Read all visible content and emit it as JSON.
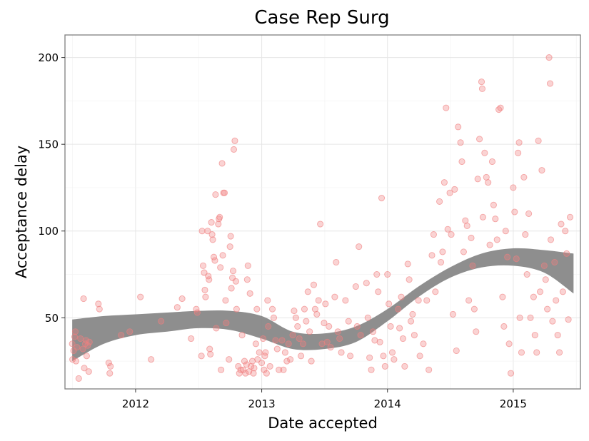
{
  "chart_data": {
    "type": "scatter",
    "title": "Case Rep Surg",
    "xlabel": "Date accepted",
    "ylabel": "Acceptance delay",
    "x_axis_type": "date",
    "xlim": [
      "2011-06-10",
      "2015-07-15"
    ],
    "ylim": [
      9,
      213
    ],
    "x_ticks": [
      "2012-01-01",
      "2013-01-01",
      "2014-01-01",
      "2015-01-01"
    ],
    "x_tick_labels": [
      "2012",
      "2013",
      "2014",
      "2015"
    ],
    "y_ticks": [
      50,
      100,
      150,
      200
    ],
    "grid": true,
    "legend": "none",
    "colors": {
      "points": "#f08080",
      "band": "#888888"
    },
    "series": [
      {
        "kind": "points",
        "points": [
          [
            "2011-07-01",
            35
          ],
          [
            "2011-07-02",
            26
          ],
          [
            "2011-07-05",
            31
          ],
          [
            "2011-07-08",
            39
          ],
          [
            "2011-07-10",
            42
          ],
          [
            "2011-07-12",
            25
          ],
          [
            "2011-07-15",
            33
          ],
          [
            "2011-07-20",
            15
          ],
          [
            "2011-07-25",
            38
          ],
          [
            "2011-08-01",
            32
          ],
          [
            "2011-08-03",
            61
          ],
          [
            "2011-08-05",
            21
          ],
          [
            "2011-08-08",
            35
          ],
          [
            "2011-08-10",
            37
          ],
          [
            "2011-08-12",
            28
          ],
          [
            "2011-08-15",
            34
          ],
          [
            "2011-08-18",
            19
          ],
          [
            "2011-08-20",
            36
          ],
          [
            "2011-09-15",
            58
          ],
          [
            "2011-09-18",
            55
          ],
          [
            "2011-10-15",
            24
          ],
          [
            "2011-10-18",
            18
          ],
          [
            "2011-10-20",
            22
          ],
          [
            "2011-11-20",
            40
          ],
          [
            "2011-12-15",
            42
          ],
          [
            "2012-01-15",
            62
          ],
          [
            "2012-02-15",
            26
          ],
          [
            "2012-03-15",
            48
          ],
          [
            "2012-05-01",
            56
          ],
          [
            "2012-05-15",
            61
          ],
          [
            "2012-06-10",
            38
          ],
          [
            "2012-06-25",
            55
          ],
          [
            "2012-06-28",
            53
          ],
          [
            "2012-07-10",
            28
          ],
          [
            "2012-07-12",
            100
          ],
          [
            "2012-07-15",
            80
          ],
          [
            "2012-07-18",
            76
          ],
          [
            "2012-07-20",
            66
          ],
          [
            "2012-07-22",
            62
          ],
          [
            "2012-07-28",
            100
          ],
          [
            "2012-07-30",
            74
          ],
          [
            "2012-08-01",
            72
          ],
          [
            "2012-08-03",
            32
          ],
          [
            "2012-08-05",
            29
          ],
          [
            "2012-08-08",
            105
          ],
          [
            "2012-08-10",
            98
          ],
          [
            "2012-08-12",
            95
          ],
          [
            "2012-08-15",
            85
          ],
          [
            "2012-08-18",
            83
          ],
          [
            "2012-08-20",
            121
          ],
          [
            "2012-08-22",
            44
          ],
          [
            "2012-08-28",
            104
          ],
          [
            "2012-08-30",
            107
          ],
          [
            "2012-09-01",
            108
          ],
          [
            "2012-09-03",
            79
          ],
          [
            "2012-09-05",
            20
          ],
          [
            "2012-09-08",
            139
          ],
          [
            "2012-09-10",
            86
          ],
          [
            "2012-09-12",
            122
          ],
          [
            "2012-09-15",
            122
          ],
          [
            "2012-09-18",
            60
          ],
          [
            "2012-09-20",
            47
          ],
          [
            "2012-09-28",
            26
          ],
          [
            "2012-10-01",
            91
          ],
          [
            "2012-10-03",
            97
          ],
          [
            "2012-10-05",
            67
          ],
          [
            "2012-10-08",
            73
          ],
          [
            "2012-10-10",
            77
          ],
          [
            "2012-10-12",
            147
          ],
          [
            "2012-10-15",
            152
          ],
          [
            "2012-10-18",
            71
          ],
          [
            "2012-10-20",
            55
          ],
          [
            "2012-10-25",
            22
          ],
          [
            "2012-10-28",
            18
          ],
          [
            "2012-11-01",
            20
          ],
          [
            "2012-11-05",
            40
          ],
          [
            "2012-11-08",
            20
          ],
          [
            "2012-11-12",
            25
          ],
          [
            "2012-11-15",
            18
          ],
          [
            "2012-11-18",
            23
          ],
          [
            "2012-11-20",
            72
          ],
          [
            "2012-11-22",
            80
          ],
          [
            "2012-11-25",
            19
          ],
          [
            "2012-11-28",
            64
          ],
          [
            "2012-12-01",
            22
          ],
          [
            "2012-12-05",
            25
          ],
          [
            "2012-12-08",
            18
          ],
          [
            "2012-12-10",
            21
          ],
          [
            "2012-12-15",
            35
          ],
          [
            "2012-12-18",
            55
          ],
          [
            "2012-12-20",
            26
          ],
          [
            "2012-12-25",
            30
          ],
          [
            "2013-01-01",
            24
          ],
          [
            "2013-01-05",
            38
          ],
          [
            "2013-01-08",
            20
          ],
          [
            "2013-01-10",
            28
          ],
          [
            "2013-01-12",
            30
          ],
          [
            "2013-01-15",
            18
          ],
          [
            "2013-01-18",
            60
          ],
          [
            "2013-01-20",
            45
          ],
          [
            "2013-01-25",
            22
          ],
          [
            "2013-02-01",
            55
          ],
          [
            "2013-02-05",
            50
          ],
          [
            "2013-02-10",
            37
          ],
          [
            "2013-02-15",
            32
          ],
          [
            "2013-02-20",
            20
          ],
          [
            "2013-03-01",
            37
          ],
          [
            "2013-03-05",
            20
          ],
          [
            "2013-03-10",
            30
          ],
          [
            "2013-03-15",
            25
          ],
          [
            "2013-03-20",
            35
          ],
          [
            "2013-03-25",
            26
          ],
          [
            "2013-04-01",
            40
          ],
          [
            "2013-04-05",
            54
          ],
          [
            "2013-04-10",
            50
          ],
          [
            "2013-04-15",
            45
          ],
          [
            "2013-04-20",
            38
          ],
          [
            "2013-04-25",
            28
          ],
          [
            "2013-05-01",
            35
          ],
          [
            "2013-05-05",
            55
          ],
          [
            "2013-05-10",
            48
          ],
          [
            "2013-05-15",
            65
          ],
          [
            "2013-05-20",
            42
          ],
          [
            "2013-05-25",
            25
          ],
          [
            "2013-06-01",
            69
          ],
          [
            "2013-06-05",
            55
          ],
          [
            "2013-06-10",
            52
          ],
          [
            "2013-06-15",
            60
          ],
          [
            "2013-06-20",
            104
          ],
          [
            "2013-06-25",
            35
          ],
          [
            "2013-07-01",
            47
          ],
          [
            "2013-07-05",
            58
          ],
          [
            "2013-07-10",
            36
          ],
          [
            "2013-07-15",
            45
          ],
          [
            "2013-07-20",
            33
          ],
          [
            "2013-08-01",
            62
          ],
          [
            "2013-08-05",
            82
          ],
          [
            "2013-08-10",
            42
          ],
          [
            "2013-08-15",
            38
          ],
          [
            "2013-08-20",
            30
          ],
          [
            "2013-09-01",
            60
          ],
          [
            "2013-09-10",
            48
          ],
          [
            "2013-09-15",
            28
          ],
          [
            "2013-10-01",
            68
          ],
          [
            "2013-10-05",
            45
          ],
          [
            "2013-10-10",
            91
          ],
          [
            "2013-10-15",
            40
          ],
          [
            "2013-11-01",
            70
          ],
          [
            "2013-11-05",
            50
          ],
          [
            "2013-11-10",
            27
          ],
          [
            "2013-11-15",
            20
          ],
          [
            "2013-11-20",
            42
          ],
          [
            "2013-11-25",
            37
          ],
          [
            "2013-12-01",
            75
          ],
          [
            "2013-12-05",
            65
          ],
          [
            "2013-12-10",
            36
          ],
          [
            "2013-12-15",
            119
          ],
          [
            "2013-12-20",
            28
          ],
          [
            "2013-12-25",
            22
          ],
          [
            "2014-01-01",
            75
          ],
          [
            "2014-01-05",
            58
          ],
          [
            "2014-01-10",
            45
          ],
          [
            "2014-01-15",
            30
          ],
          [
            "2014-01-20",
            26
          ],
          [
            "2014-02-01",
            55
          ],
          [
            "2014-02-05",
            44
          ],
          [
            "2014-02-10",
            62
          ],
          [
            "2014-02-15",
            38
          ],
          [
            "2014-02-20",
            22
          ],
          [
            "2014-03-01",
            81
          ],
          [
            "2014-03-05",
            72
          ],
          [
            "2014-03-10",
            48
          ],
          [
            "2014-03-15",
            52
          ],
          [
            "2014-03-20",
            40
          ],
          [
            "2014-04-01",
            60
          ],
          [
            "2014-04-05",
            28
          ],
          [
            "2014-04-15",
            35
          ],
          [
            "2014-04-25",
            60
          ],
          [
            "2014-05-01",
            20
          ],
          [
            "2014-05-10",
            86
          ],
          [
            "2014-05-15",
            98
          ],
          [
            "2014-05-20",
            65
          ],
          [
            "2014-06-01",
            117
          ],
          [
            "2014-06-05",
            82
          ],
          [
            "2014-06-10",
            88
          ],
          [
            "2014-06-15",
            128
          ],
          [
            "2014-06-20",
            171
          ],
          [
            "2014-06-25",
            101
          ],
          [
            "2014-07-01",
            122
          ],
          [
            "2014-07-05",
            98
          ],
          [
            "2014-07-10",
            52
          ],
          [
            "2014-07-15",
            124
          ],
          [
            "2014-07-20",
            31
          ],
          [
            "2014-07-25",
            160
          ],
          [
            "2014-08-01",
            151
          ],
          [
            "2014-08-05",
            140
          ],
          [
            "2014-08-10",
            88
          ],
          [
            "2014-08-15",
            106
          ],
          [
            "2014-08-20",
            103
          ],
          [
            "2014-08-25",
            60
          ],
          [
            "2014-09-01",
            96
          ],
          [
            "2014-09-05",
            80
          ],
          [
            "2014-09-10",
            55
          ],
          [
            "2014-09-15",
            42
          ],
          [
            "2014-09-20",
            130
          ],
          [
            "2014-09-25",
            153
          ],
          [
            "2014-10-01",
            186
          ],
          [
            "2014-10-03",
            182
          ],
          [
            "2014-10-05",
            108
          ],
          [
            "2014-10-10",
            145
          ],
          [
            "2014-10-15",
            131
          ],
          [
            "2014-10-20",
            128
          ],
          [
            "2014-10-25",
            92
          ],
          [
            "2014-11-01",
            140
          ],
          [
            "2014-11-05",
            115
          ],
          [
            "2014-11-10",
            107
          ],
          [
            "2014-11-15",
            95
          ],
          [
            "2014-11-20",
            170
          ],
          [
            "2014-11-25",
            171
          ],
          [
            "2014-12-01",
            62
          ],
          [
            "2014-12-05",
            45
          ],
          [
            "2014-12-10",
            100
          ],
          [
            "2014-12-15",
            85
          ],
          [
            "2014-12-20",
            35
          ],
          [
            "2014-12-25",
            18
          ],
          [
            "2015-01-01",
            125
          ],
          [
            "2015-01-05",
            111
          ],
          [
            "2015-01-10",
            84
          ],
          [
            "2015-01-15",
            145
          ],
          [
            "2015-01-18",
            151
          ],
          [
            "2015-01-20",
            50
          ],
          [
            "2015-01-25",
            30
          ],
          [
            "2015-02-01",
            131
          ],
          [
            "2015-02-05",
            98
          ],
          [
            "2015-02-10",
            75
          ],
          [
            "2015-02-15",
            110
          ],
          [
            "2015-02-20",
            50
          ],
          [
            "2015-03-01",
            62
          ],
          [
            "2015-03-05",
            40
          ],
          [
            "2015-03-10",
            30
          ],
          [
            "2015-03-15",
            152
          ],
          [
            "2015-03-20",
            65
          ],
          [
            "2015-03-25",
            135
          ],
          [
            "2015-04-01",
            80
          ],
          [
            "2015-04-05",
            72
          ],
          [
            "2015-04-10",
            55
          ],
          [
            "2015-04-15",
            200
          ],
          [
            "2015-04-18",
            185
          ],
          [
            "2015-04-20",
            95
          ],
          [
            "2015-04-25",
            48
          ],
          [
            "2015-05-01",
            82
          ],
          [
            "2015-05-05",
            60
          ],
          [
            "2015-05-10",
            40
          ],
          [
            "2015-05-15",
            30
          ],
          [
            "2015-05-20",
            104
          ],
          [
            "2015-05-25",
            65
          ],
          [
            "2015-06-01",
            100
          ],
          [
            "2015-06-05",
            87
          ],
          [
            "2015-06-10",
            49
          ],
          [
            "2015-06-15",
            108
          ]
        ]
      },
      {
        "kind": "confidence-band",
        "points": [
          [
            "2011-07-01",
            25,
            49
          ],
          [
            "2011-10-01",
            35,
            51
          ],
          [
            "2012-01-01",
            40,
            52
          ],
          [
            "2012-04-01",
            42,
            53
          ],
          [
            "2012-07-01",
            44,
            54
          ],
          [
            "2012-10-01",
            43,
            54
          ],
          [
            "2013-01-01",
            38,
            51
          ],
          [
            "2013-04-01",
            32,
            42
          ],
          [
            "2013-07-01",
            32,
            41
          ],
          [
            "2013-10-01",
            36,
            45
          ],
          [
            "2014-01-01",
            48,
            55
          ],
          [
            "2014-04-01",
            62,
            68
          ],
          [
            "2014-07-01",
            73,
            79
          ],
          [
            "2014-10-01",
            79,
            87
          ],
          [
            "2015-01-01",
            80,
            90
          ],
          [
            "2015-04-01",
            76,
            89
          ],
          [
            "2015-06-25",
            64,
            87
          ]
        ]
      }
    ]
  }
}
